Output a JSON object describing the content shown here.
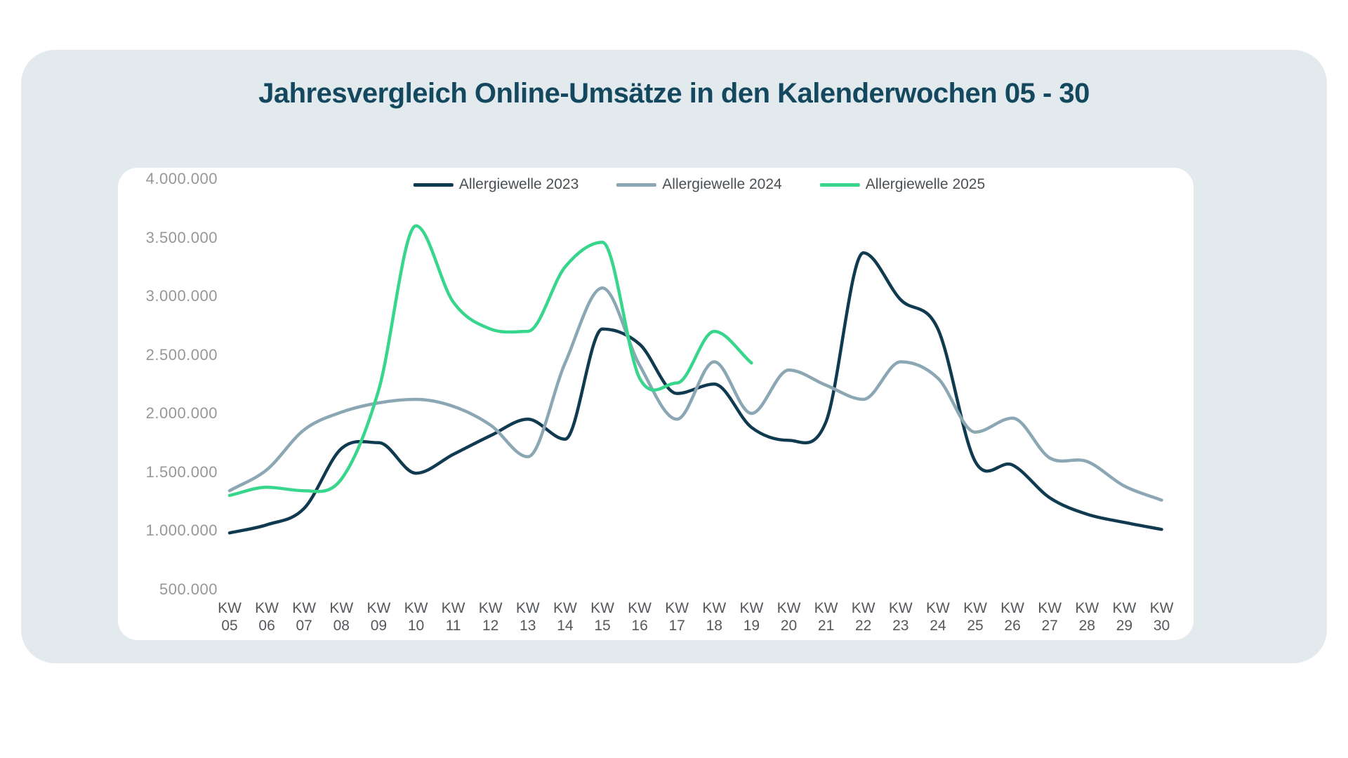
{
  "page": {
    "background_color": "#ffffff",
    "card_color": "#e3eaed",
    "panel_color": "#ffffff",
    "title_color": "#14485e"
  },
  "chart_data": {
    "type": "line",
    "title": "Jahresvergleich Online-Umsätze in den Kalenderwochen 05 - 30",
    "xlabel": "",
    "ylabel": "",
    "ylim": [
      500000,
      4000000
    ],
    "grid": false,
    "legend_position": "top",
    "y_ticks": [
      "4.000.000",
      "3.500.000",
      "3.000.000",
      "2.500.000",
      "2.000.000",
      "1.500.000",
      "1.000.000",
      "500.000"
    ],
    "categories": [
      "KW 05",
      "KW 06",
      "KW 07",
      "KW 08",
      "KW 09",
      "KW 10",
      "KW 11",
      "KW 12",
      "KW 13",
      "KW 14",
      "KW 15",
      "KW 16",
      "KW 17",
      "KW 18",
      "KW 19",
      "KW 20",
      "KW 21",
      "KW 22",
      "KW 23",
      "KW 24",
      "KW 25",
      "KW 26",
      "KW 27",
      "KW 28",
      "KW 29",
      "KW 30"
    ],
    "series": [
      {
        "name": "Allergiewelle 2023",
        "color": "#0f3a50",
        "values": [
          980000,
          1050000,
          1190000,
          1700000,
          1750000,
          1490000,
          1650000,
          1810000,
          1950000,
          1780000,
          2720000,
          2590000,
          2170000,
          2250000,
          1880000,
          1770000,
          1930000,
          3370000,
          2970000,
          2720000,
          1590000,
          1560000,
          1280000,
          1140000,
          1070000,
          1010000
        ]
      },
      {
        "name": "Allergiewelle 2024",
        "color": "#8ba7b3",
        "values": [
          1340000,
          1520000,
          1860000,
          2010000,
          2090000,
          2120000,
          2060000,
          1900000,
          1630000,
          2430000,
          3070000,
          2410000,
          1950000,
          2440000,
          2000000,
          2370000,
          2240000,
          2120000,
          2440000,
          2300000,
          1840000,
          1960000,
          1620000,
          1590000,
          1380000,
          1260000
        ]
      },
      {
        "name": "Allergiewelle 2025",
        "color": "#37d68c",
        "values": [
          1300000,
          1370000,
          1340000,
          1440000,
          2200000,
          3600000,
          2950000,
          2720000,
          2700000,
          3250000,
          3460000,
          2300000,
          2260000,
          2700000,
          2430000
        ]
      }
    ]
  }
}
